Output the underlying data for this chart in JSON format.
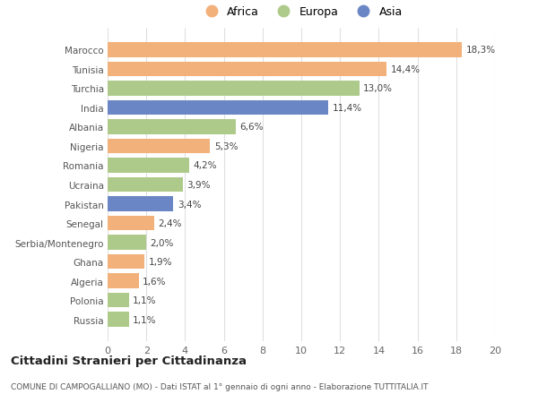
{
  "categories": [
    "Russia",
    "Polonia",
    "Algeria",
    "Ghana",
    "Serbia/Montenegro",
    "Senegal",
    "Pakistan",
    "Ucraina",
    "Romania",
    "Nigeria",
    "Albania",
    "India",
    "Turchia",
    "Tunisia",
    "Marocco"
  ],
  "values": [
    1.1,
    1.1,
    1.6,
    1.9,
    2.0,
    2.4,
    3.4,
    3.9,
    4.2,
    5.3,
    6.6,
    11.4,
    13.0,
    14.4,
    18.3
  ],
  "labels": [
    "1,1%",
    "1,1%",
    "1,6%",
    "1,9%",
    "2,0%",
    "2,4%",
    "3,4%",
    "3,9%",
    "4,2%",
    "5,3%",
    "6,6%",
    "11,4%",
    "13,0%",
    "14,4%",
    "18,3%"
  ],
  "continents": [
    "Europa",
    "Europa",
    "Africa",
    "Africa",
    "Europa",
    "Africa",
    "Asia",
    "Europa",
    "Europa",
    "Africa",
    "Europa",
    "Asia",
    "Europa",
    "Africa",
    "Africa"
  ],
  "colors": {
    "Africa": "#F2B07A",
    "Europa": "#AECA8A",
    "Asia": "#6B86C4"
  },
  "legend_order": [
    "Africa",
    "Europa",
    "Asia"
  ],
  "title": "Cittadini Stranieri per Cittadinanza",
  "subtitle": "COMUNE DI CAMPOGALLIANO (MO) - Dati ISTAT al 1° gennaio di ogni anno - Elaborazione TUTTITALIA.IT",
  "xlim": [
    0,
    20
  ],
  "xticks": [
    0,
    2,
    4,
    6,
    8,
    10,
    12,
    14,
    16,
    18,
    20
  ],
  "background_color": "#ffffff",
  "grid_color": "#e0e0e0"
}
